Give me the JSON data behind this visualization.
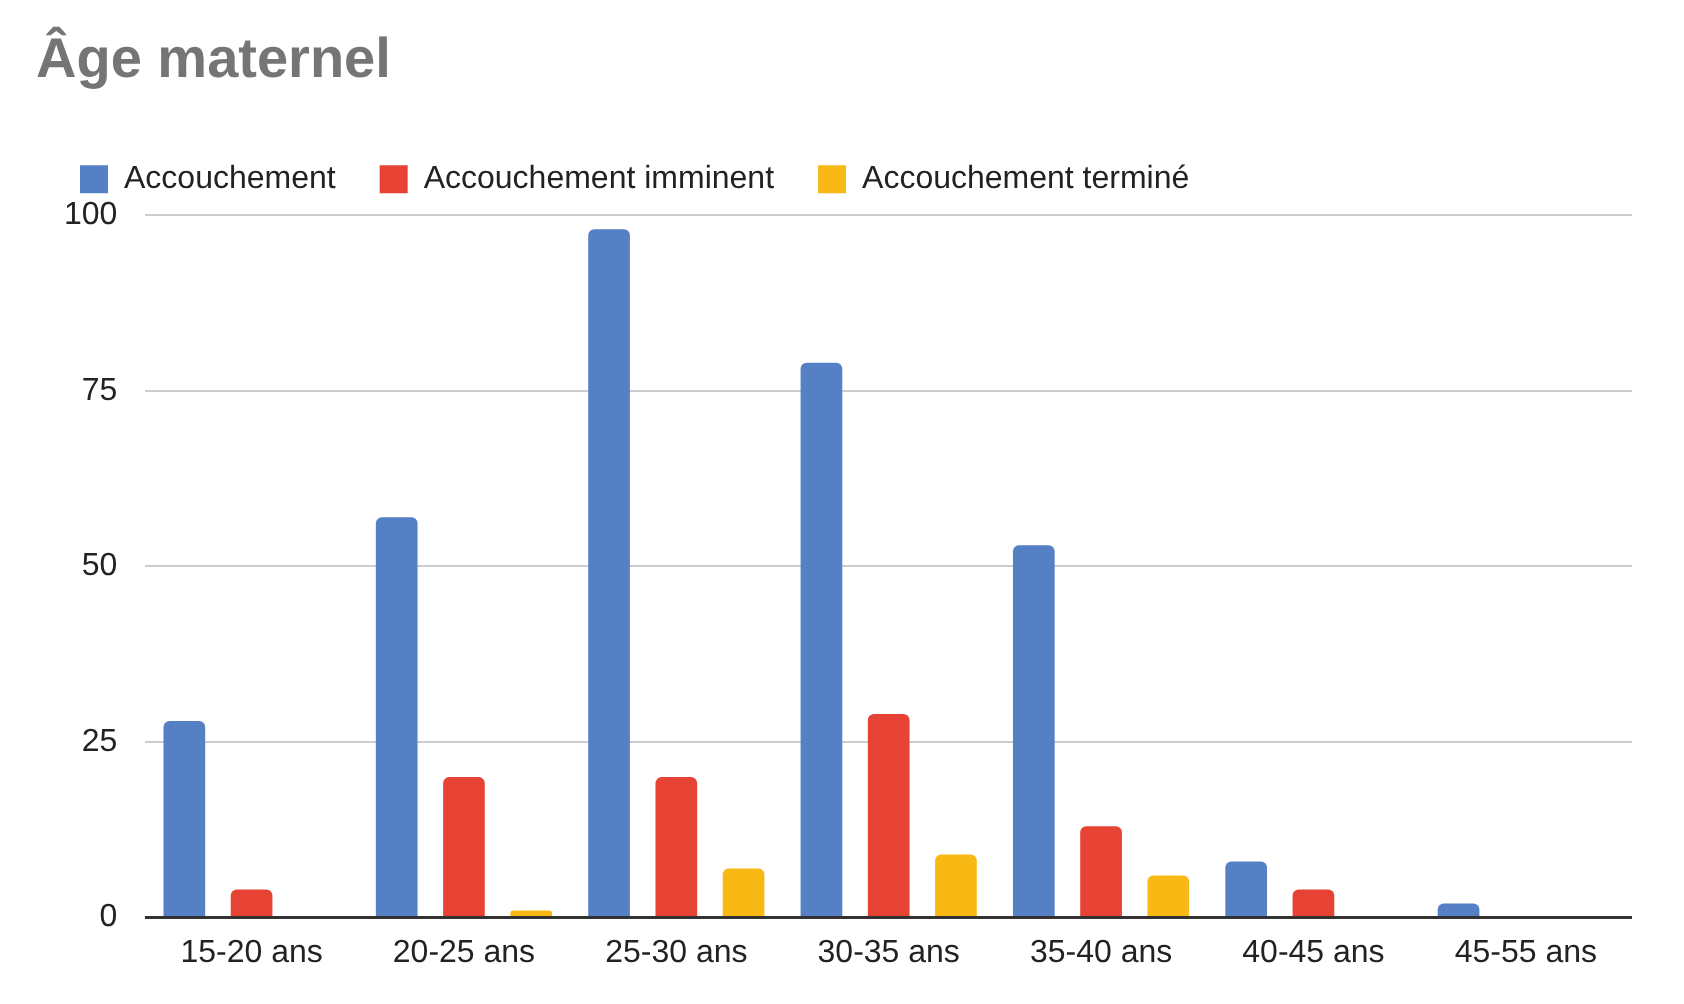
{
  "chart_data": {
    "type": "bar",
    "title": "Âge maternel",
    "categories": [
      "15-20 ans",
      "20-25 ans",
      "25-30 ans",
      "30-35 ans",
      "35-40 ans",
      "40-45 ans",
      "45-55 ans"
    ],
    "series": [
      {
        "name": "Accouchement",
        "color": "#5680c6",
        "values": [
          28,
          57,
          98,
          79,
          53,
          8,
          2
        ]
      },
      {
        "name": "Accouchement imminent",
        "color": "#e64335",
        "values": [
          4,
          20,
          20,
          29,
          13,
          4,
          0
        ]
      },
      {
        "name": "Accouchement terminé",
        "color": "#f9b915",
        "values": [
          0,
          1,
          7,
          9,
          6,
          0,
          0
        ]
      }
    ],
    "ylim": [
      0,
      100
    ],
    "yticks": [
      0,
      25,
      50,
      75,
      100
    ],
    "grid": "y",
    "legend": "top left"
  }
}
